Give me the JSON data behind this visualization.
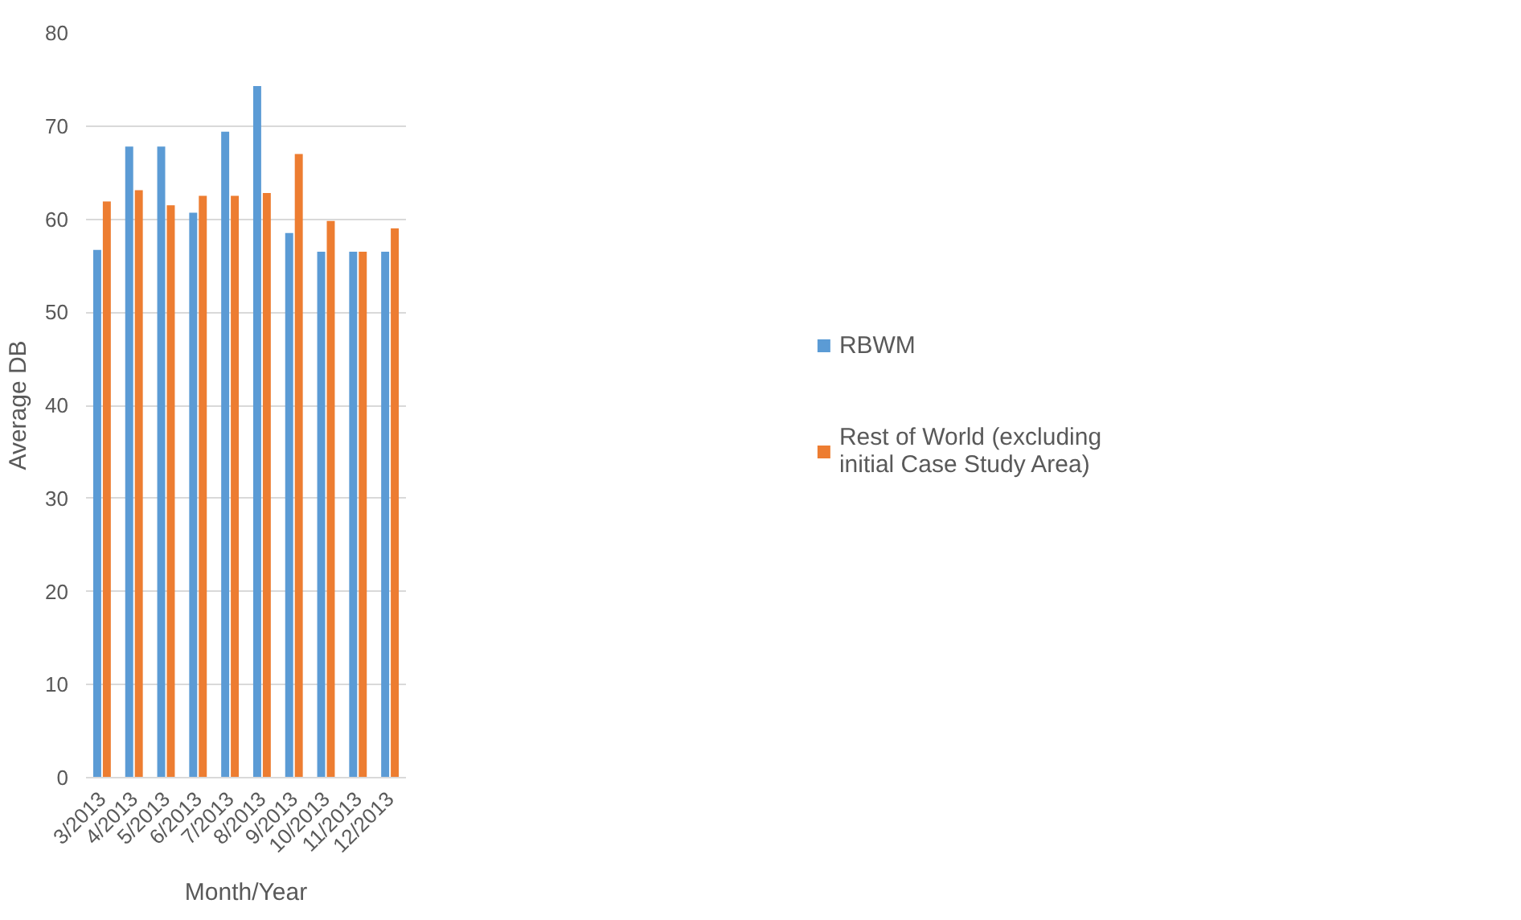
{
  "chart_data": {
    "type": "bar",
    "xlabel": "Month/Year",
    "ylabel": "Average DB",
    "categories": [
      "3/2013",
      "4/2013",
      "5/2013",
      "6/2013",
      "7/2013",
      "8/2013",
      "9/2013",
      "10/2013",
      "11/2013",
      "12/2013"
    ],
    "series": [
      {
        "name": "RBWM",
        "color": "#5b9bd5",
        "values": [
          56.7,
          67.8,
          67.8,
          60.7,
          69.4,
          74.3,
          58.5,
          56.5,
          56.5,
          56.5
        ]
      },
      {
        "name": "Rest of World (excluding initial Case Study Area)",
        "color": "#ed7d31",
        "values": [
          61.9,
          63.1,
          61.5,
          62.5,
          62.5,
          62.8,
          67.0,
          59.8,
          56.5,
          59.0
        ]
      }
    ],
    "ylim": [
      0,
      80
    ],
    "yticks": [
      0,
      10,
      20,
      30,
      40,
      50,
      60,
      70,
      80
    ],
    "grid": "y",
    "legend": "right"
  }
}
